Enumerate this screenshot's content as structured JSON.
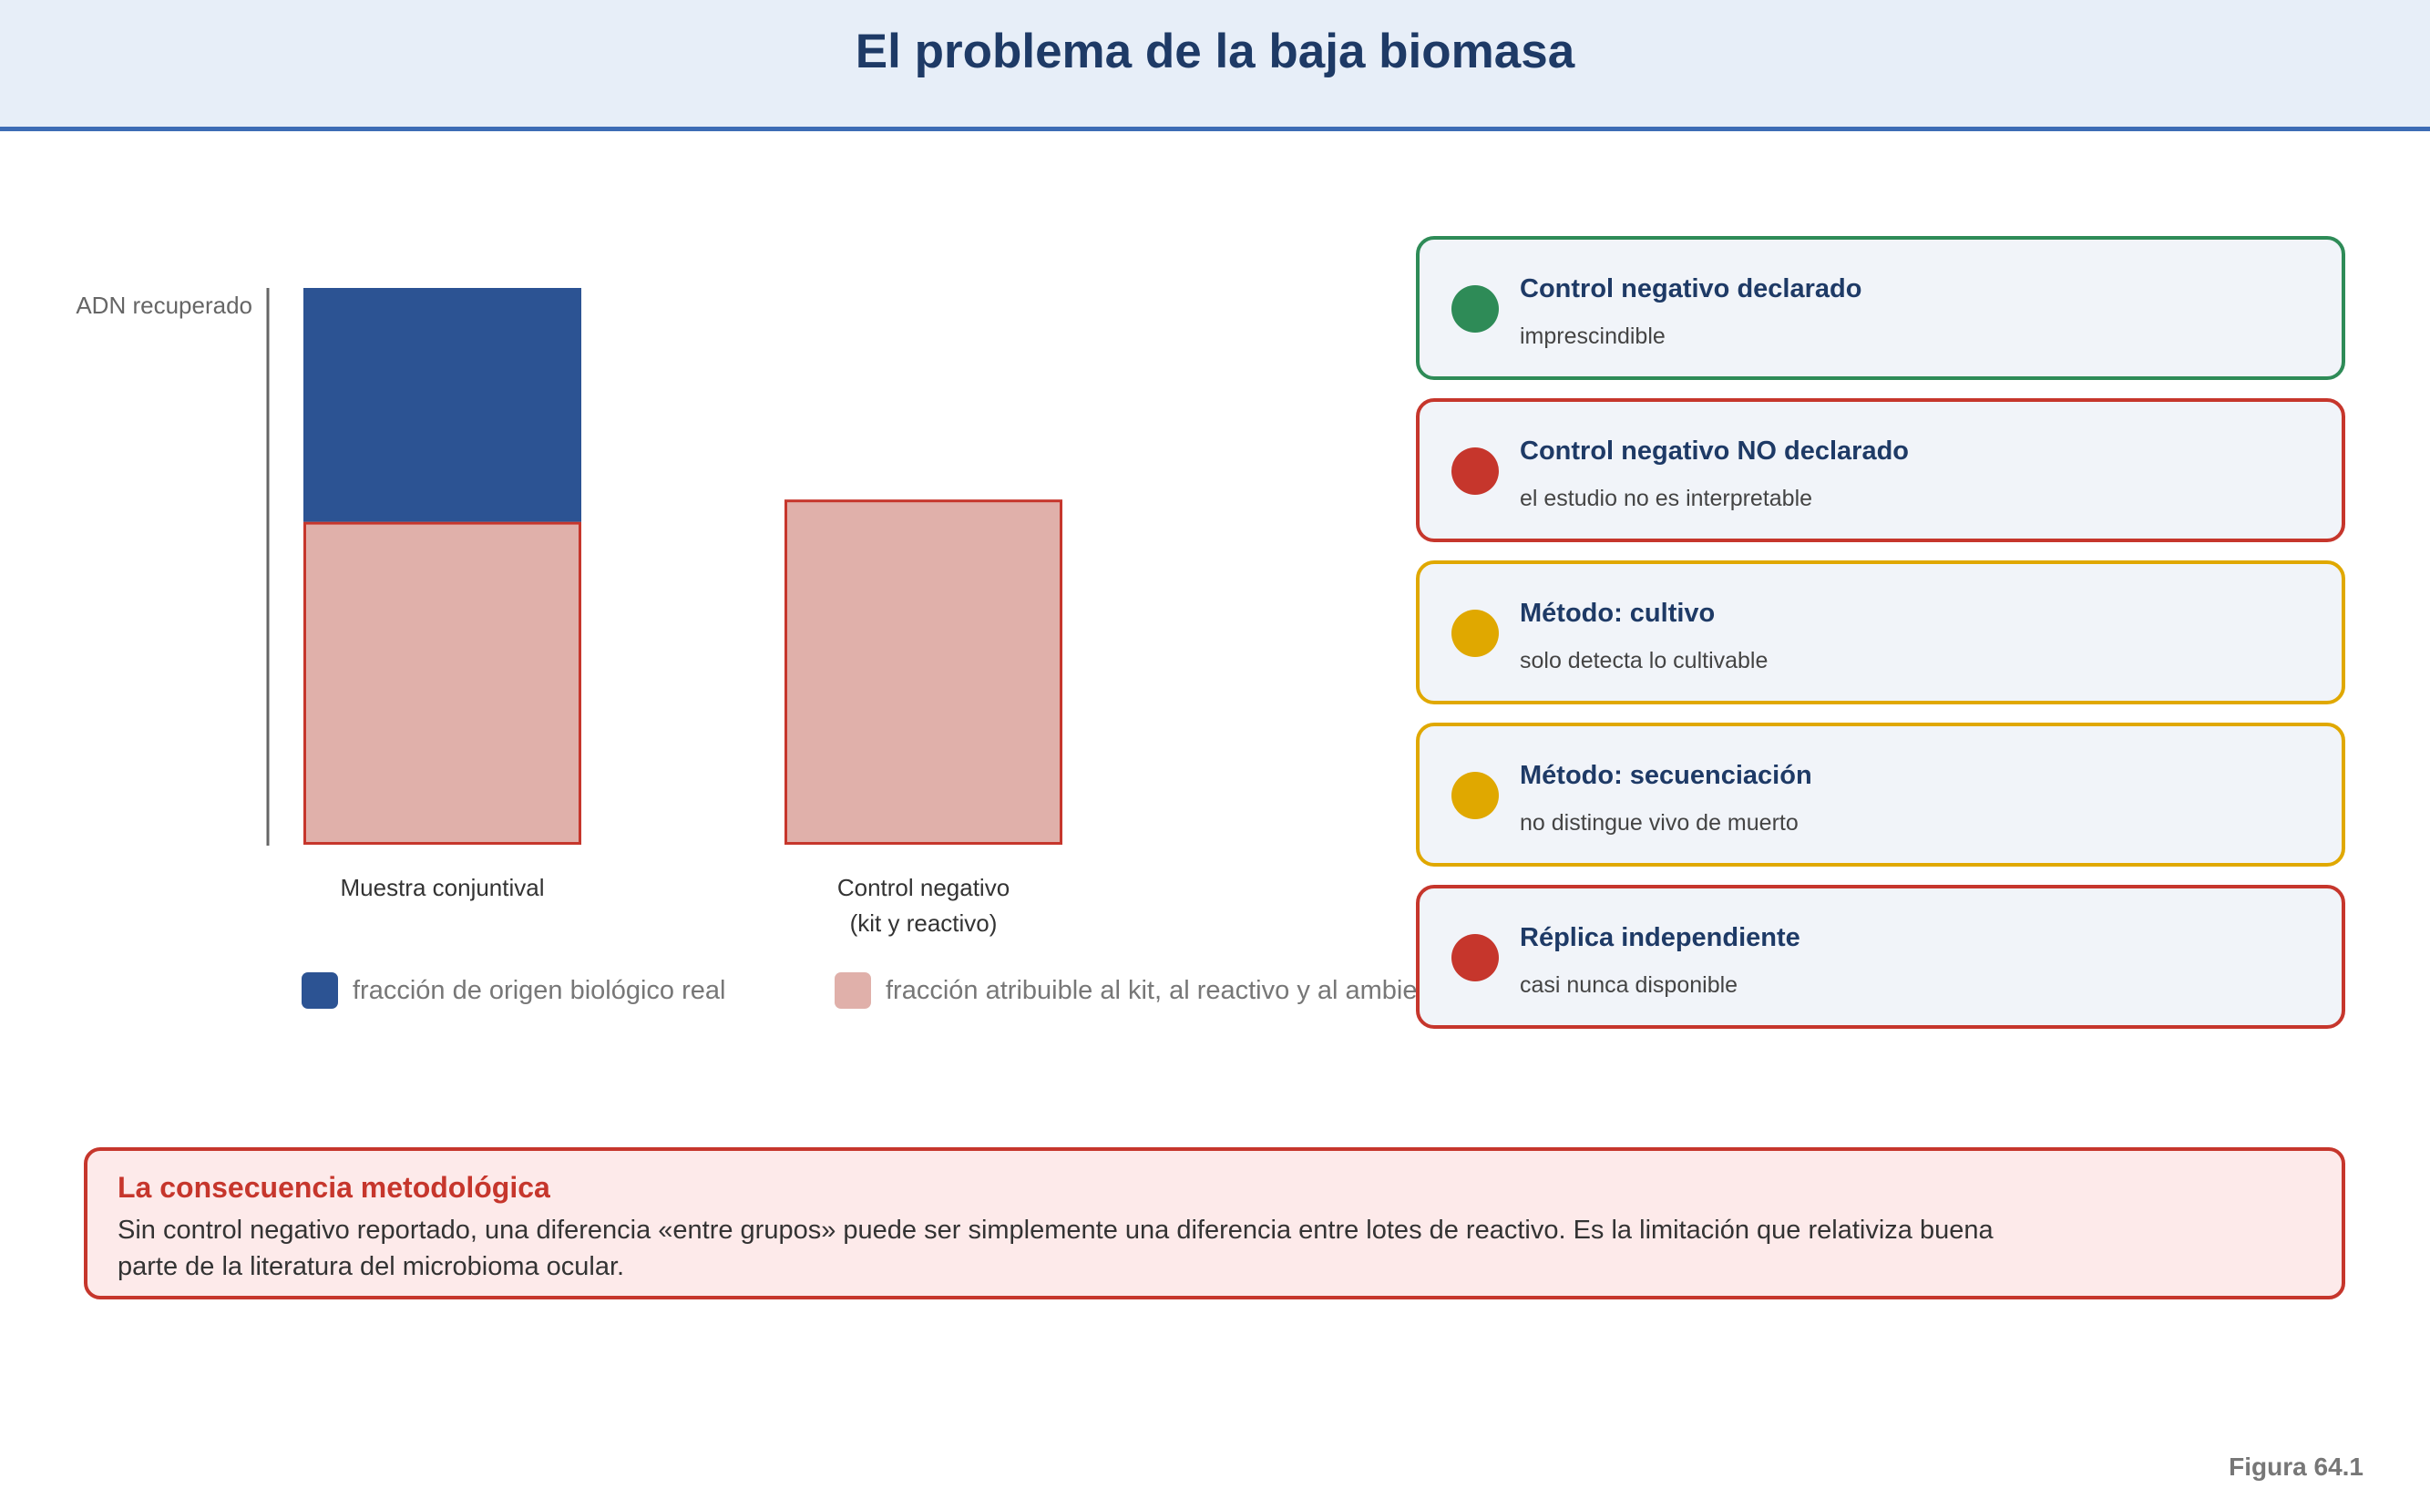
{
  "header": {
    "title": "El problema de la baja biomasa"
  },
  "chart_data": {
    "type": "bar",
    "ylabel": "ADN recuperado",
    "categories": [
      {
        "line1": "Muestra conjuntival",
        "line2": ""
      },
      {
        "line1": "Control negativo",
        "line2": "(kit y reactivo)"
      }
    ],
    "series": [
      {
        "name": "fracción atribuible al kit, al reactivo y al ambiente",
        "color": "#e0b0aa",
        "stroke": "#c6362c",
        "values": [
          58,
          62
        ]
      },
      {
        "name": "fracción de origen biológico real",
        "color": "#2c5393",
        "stroke": "#2c5393",
        "values": [
          42,
          0
        ]
      }
    ],
    "ylim": [
      0,
      100
    ]
  },
  "legend": [
    {
      "label": "fracción de origen biológico real",
      "color": "#2c5393"
    },
    {
      "label": "fracción atribuible al kit, al reactivo y al ambiente",
      "color": "#e0b0aa"
    }
  ],
  "cards": [
    {
      "title": "Control negativo declarado",
      "subtitle": "imprescindible",
      "color": "#2e8b57"
    },
    {
      "title": "Control negativo NO declarado",
      "subtitle": "el estudio no es interpretable",
      "color": "#c6362c"
    },
    {
      "title": "Método: cultivo",
      "subtitle": "solo detecta lo cultivable",
      "color": "#e0a800"
    },
    {
      "title": "Método: secuenciación",
      "subtitle": "no distingue vivo de muerto",
      "color": "#e0a800"
    },
    {
      "title": "Réplica independiente",
      "subtitle": "casi nunca disponible",
      "color": "#c6362c"
    }
  ],
  "note": {
    "title": "La consecuencia metodológica",
    "text": "Sin control negativo reportado, una diferencia «entre grupos» puede ser simplemente una diferencia entre lotes de reactivo. Es la limitación que relativiza buena parte de la literatura del microbioma ocular."
  },
  "figure_label": "Figura 64.1"
}
